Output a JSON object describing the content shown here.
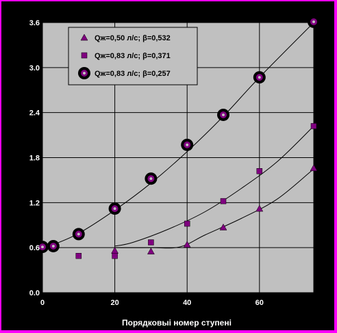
{
  "colors": {
    "page_background": "#ff00ff",
    "frame": "#000000",
    "plot_background": "#c0c0c0",
    "gridline": "#000000",
    "marker_fill": "#800080",
    "text": "#ffffff"
  },
  "chart_data": {
    "type": "scatter",
    "title": "",
    "xlabel": "Порядковыі номер ступені",
    "ylabel": "",
    "xlim": [
      0,
      75
    ],
    "ylim": [
      0,
      3.6
    ],
    "x_ticks": [
      0,
      20,
      40,
      60
    ],
    "y_ticks": [
      0.0,
      0.6,
      1.2,
      1.8,
      2.4,
      3.0,
      3.6
    ],
    "y_tick_labels": [
      "0.0",
      "0.6",
      "1.2",
      "1.8",
      "2.4",
      "3.0",
      "3.6"
    ],
    "grid": true,
    "legend_position": "top-left",
    "series": [
      {
        "name": "Qж=0,50 л/с;   β=0,532",
        "marker": "triangle",
        "points": [
          [
            20,
            0.56
          ],
          [
            30,
            0.55
          ],
          [
            40,
            0.64
          ],
          [
            50,
            0.87
          ],
          [
            60,
            1.12
          ],
          [
            75,
            1.66
          ]
        ],
        "trendline": [
          [
            20,
            0.6
          ],
          [
            30,
            0.6
          ],
          [
            38,
            0.61
          ],
          [
            45,
            0.77
          ],
          [
            55,
            0.99
          ],
          [
            65,
            1.25
          ],
          [
            75,
            1.65
          ]
        ]
      },
      {
        "name": "Qж=0,83 л/с;   β=0,371",
        "marker": "square",
        "points": [
          [
            10,
            0.49
          ],
          [
            20,
            0.49
          ],
          [
            30,
            0.67
          ],
          [
            40,
            0.92
          ],
          [
            50,
            1.22
          ],
          [
            60,
            1.62
          ],
          [
            75,
            2.22
          ]
        ],
        "trendline": [
          [
            20,
            0.62
          ],
          [
            25,
            0.67
          ],
          [
            35,
            0.85
          ],
          [
            45,
            1.08
          ],
          [
            55,
            1.39
          ],
          [
            65,
            1.75
          ],
          [
            75,
            2.22
          ]
        ]
      },
      {
        "name": "Qж=0,83 л/с;   β=0,257",
        "marker": "circle",
        "points": [
          [
            0,
            0.61
          ],
          [
            3,
            0.62
          ],
          [
            10,
            0.78
          ],
          [
            20,
            1.12
          ],
          [
            30,
            1.52
          ],
          [
            40,
            1.97
          ],
          [
            50,
            2.37
          ],
          [
            60,
            2.87
          ],
          [
            75,
            3.61
          ]
        ],
        "trendline": [
          [
            3,
            0.64
          ],
          [
            10,
            0.79
          ],
          [
            20,
            1.1
          ],
          [
            30,
            1.46
          ],
          [
            40,
            1.88
          ],
          [
            50,
            2.35
          ],
          [
            60,
            2.87
          ],
          [
            75,
            3.6
          ]
        ]
      }
    ]
  }
}
